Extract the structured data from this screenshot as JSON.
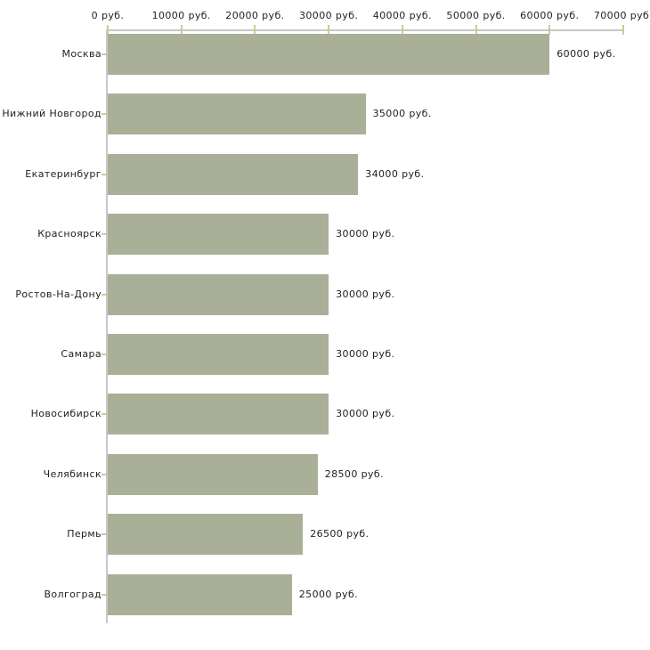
{
  "chart_data": {
    "type": "bar",
    "orientation": "horizontal",
    "title": "",
    "xlabel": "",
    "ylabel": "",
    "unit": "руб.",
    "categories": [
      "Москва",
      "Нижний Новгород",
      "Екатеринбург",
      "Красноярск",
      "Ростов-На-Дону",
      "Самара",
      "Новосибирск",
      "Челябинск",
      "Пермь",
      "Волгоград"
    ],
    "values": [
      60000,
      35000,
      34000,
      30000,
      30000,
      30000,
      30000,
      28500,
      26500,
      25000
    ],
    "value_labels": [
      "60000 руб.",
      "35000 руб.",
      "34000 руб.",
      "30000 руб.",
      "30000 руб.",
      "30000 руб.",
      "30000 руб.",
      "28500 руб.",
      "26500 руб.",
      "25000 руб."
    ],
    "x_axis": {
      "position": "top",
      "xlim": [
        0,
        70000
      ],
      "ticks": [
        0,
        10000,
        20000,
        30000,
        40000,
        50000,
        60000,
        70000
      ],
      "tick_labels": [
        "0 руб.",
        "10000 руб.",
        "20000 руб.",
        "30000 руб.",
        "40000 руб.",
        "50000 руб.",
        "60000 руб.",
        "70000 руб."
      ]
    },
    "legend": null,
    "grid": false,
    "colors": {
      "bar": "#aab097",
      "axis_line": "#c8c8c8",
      "tick_mark": "#cbcb9e",
      "text": "#222222",
      "background": "#ffffff"
    }
  }
}
